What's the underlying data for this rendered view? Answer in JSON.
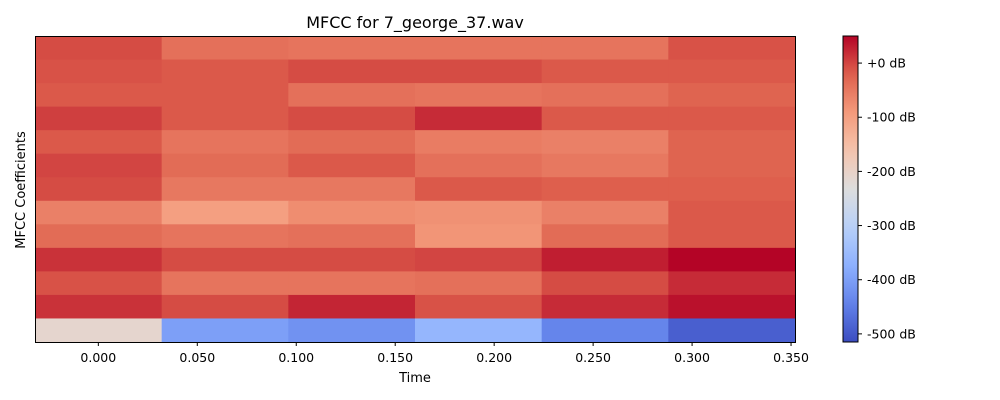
{
  "chart_data": {
    "type": "heatmap",
    "title": "MFCC for 7_george_37.wav",
    "xlabel": "Time",
    "ylabel": "MFCC Coefficients",
    "x_ticks": [
      "0.000",
      "0.050",
      "0.100",
      "0.150",
      "0.200",
      "0.250",
      "0.300",
      "0.350"
    ],
    "x_tick_values": [
      0,
      0.05,
      0.1,
      0.15,
      0.2,
      0.25,
      0.3,
      0.35
    ],
    "x_range": [
      -0.032,
      0.352
    ],
    "time_bins": [
      0,
      0.064,
      0.128,
      0.192,
      0.256,
      0.32
    ],
    "colorbar": {
      "label_suffix": " dB",
      "ticks": [
        "+0 dB",
        "-100 dB",
        "-200 dB",
        "-300 dB",
        "-400 dB",
        "-500 dB"
      ],
      "tick_values": [
        0,
        -100,
        -200,
        -300,
        -400,
        -500
      ],
      "vmin": -515,
      "vmax": 50,
      "colormap": "coolwarm"
    },
    "rows": [
      [
        -5,
        -40,
        -45,
        -45,
        -45,
        -10
      ],
      [
        -10,
        -15,
        -5,
        -5,
        -15,
        -15
      ],
      [
        -15,
        -15,
        -40,
        -45,
        -40,
        -25
      ],
      [
        5,
        -15,
        -5,
        20,
        -15,
        -15
      ],
      [
        -15,
        -45,
        -35,
        -55,
        -60,
        -25
      ],
      [
        0,
        -35,
        -15,
        -40,
        -50,
        -25
      ],
      [
        -5,
        -50,
        -50,
        -15,
        -20,
        -20
      ],
      [
        -60,
        -100,
        -75,
        -80,
        -60,
        -15
      ],
      [
        -35,
        -45,
        -40,
        -85,
        -35,
        -15
      ],
      [
        15,
        -5,
        -5,
        0,
        30,
        50
      ],
      [
        -10,
        -45,
        -45,
        -40,
        -5,
        20
      ],
      [
        15,
        -5,
        25,
        -10,
        20,
        40
      ],
      [
        -210,
        -400,
        -420,
        -360,
        -440,
        -490
      ]
    ]
  }
}
